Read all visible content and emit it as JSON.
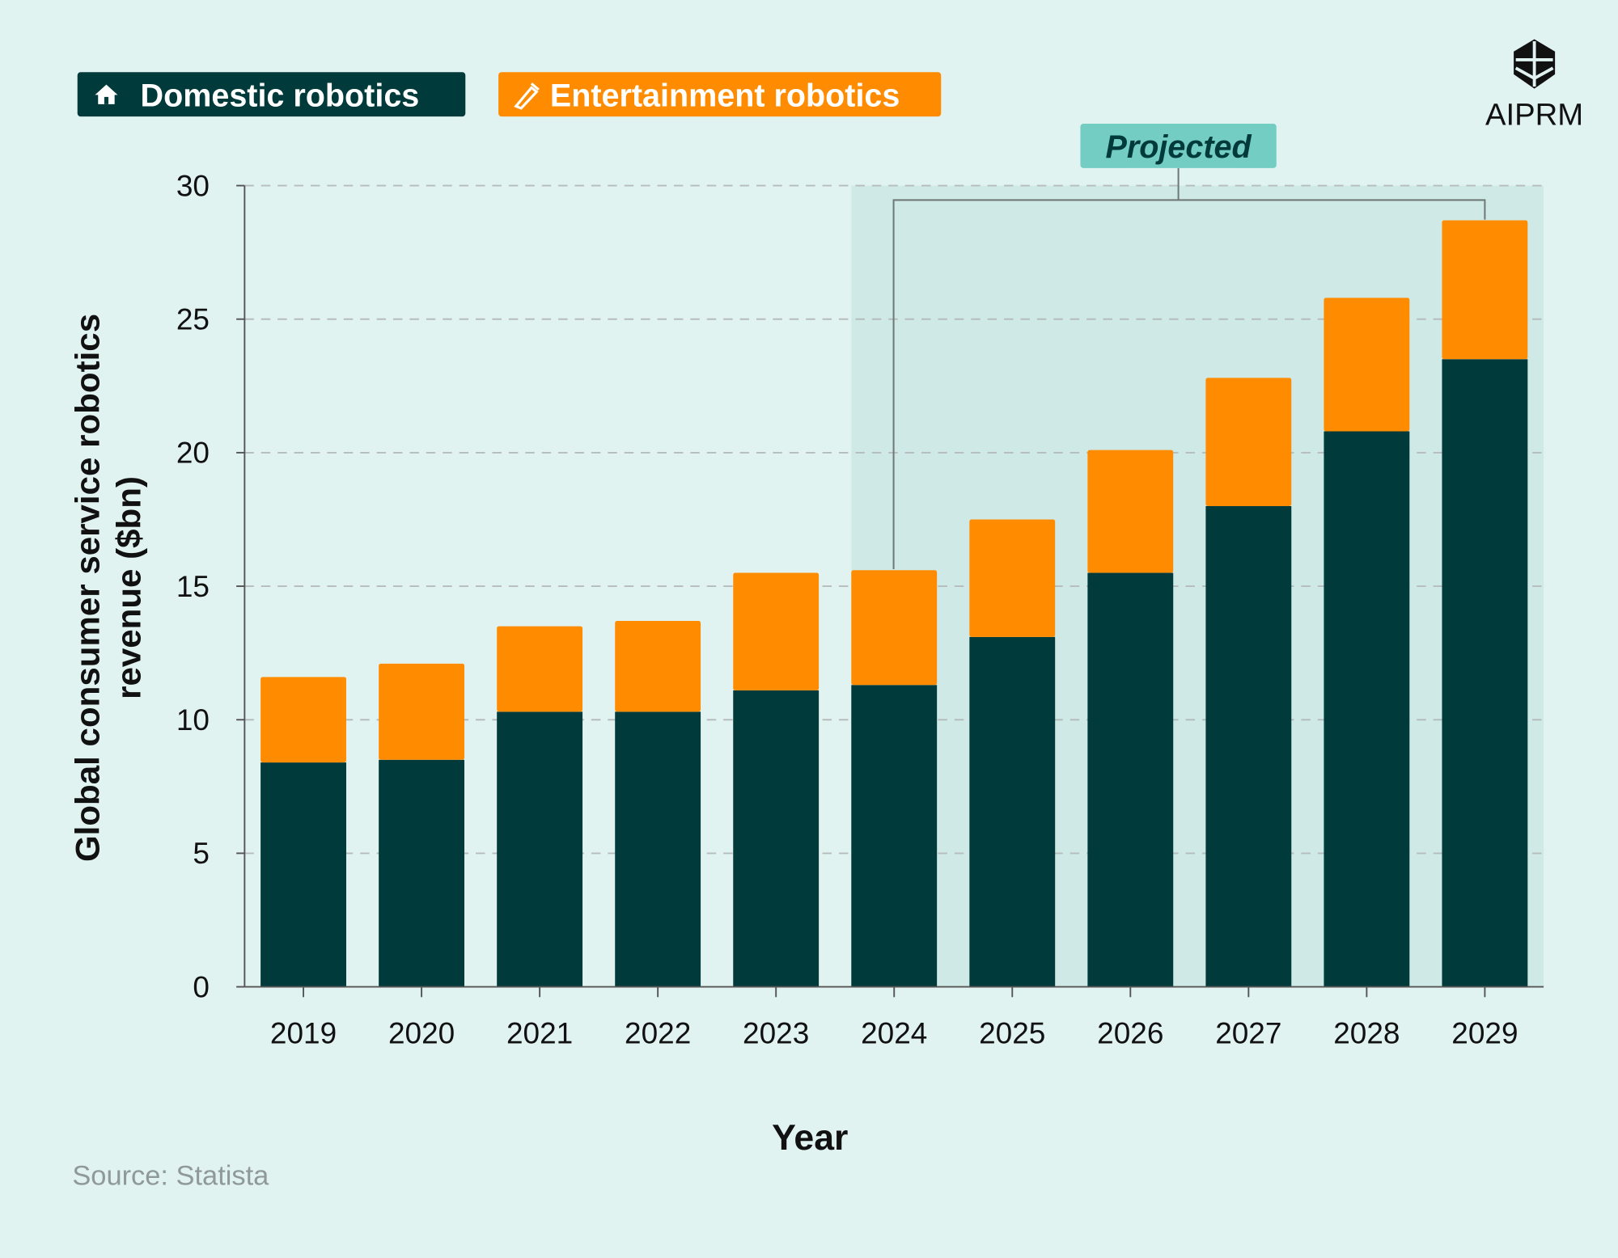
{
  "logo": {
    "text": "AIPRM"
  },
  "legend": [
    {
      "label": "Domestic robotics",
      "icon": "house-icon",
      "color": "#003a3a"
    },
    {
      "label": "Entertainment robotics",
      "icon": "pen-icon",
      "color": "#ff8c00"
    }
  ],
  "projected_label": "Projected",
  "source": "Source: Statista",
  "colors": {
    "background": "#e1f3f1",
    "projected_band": "#cfeae6",
    "projected_tag": "#73cdc3"
  },
  "chart_data": {
    "type": "bar",
    "stacked": true,
    "title": "",
    "xlabel": "Year",
    "ylabel": "Global consumer service robotics revenue ($bn)",
    "ylim": [
      0,
      30
    ],
    "yticks": [
      0,
      5,
      10,
      15,
      20,
      25,
      30
    ],
    "grid": "horizontal dashed",
    "legend_position": "top-left",
    "categories": [
      "2019",
      "2020",
      "2021",
      "2022",
      "2023",
      "2024",
      "2025",
      "2026",
      "2027",
      "2028",
      "2029"
    ],
    "projected_from": "2024",
    "series": [
      {
        "name": "Domestic robotics",
        "color": "#003a3a",
        "values": [
          8.4,
          8.5,
          10.3,
          10.3,
          11.1,
          11.3,
          13.1,
          15.5,
          18.0,
          20.8,
          23.5
        ]
      },
      {
        "name": "Entertainment robotics",
        "color": "#ff8c00",
        "values": [
          3.2,
          3.6,
          3.2,
          3.4,
          4.4,
          4.3,
          4.4,
          4.6,
          4.8,
          5.0,
          5.2
        ]
      }
    ]
  }
}
